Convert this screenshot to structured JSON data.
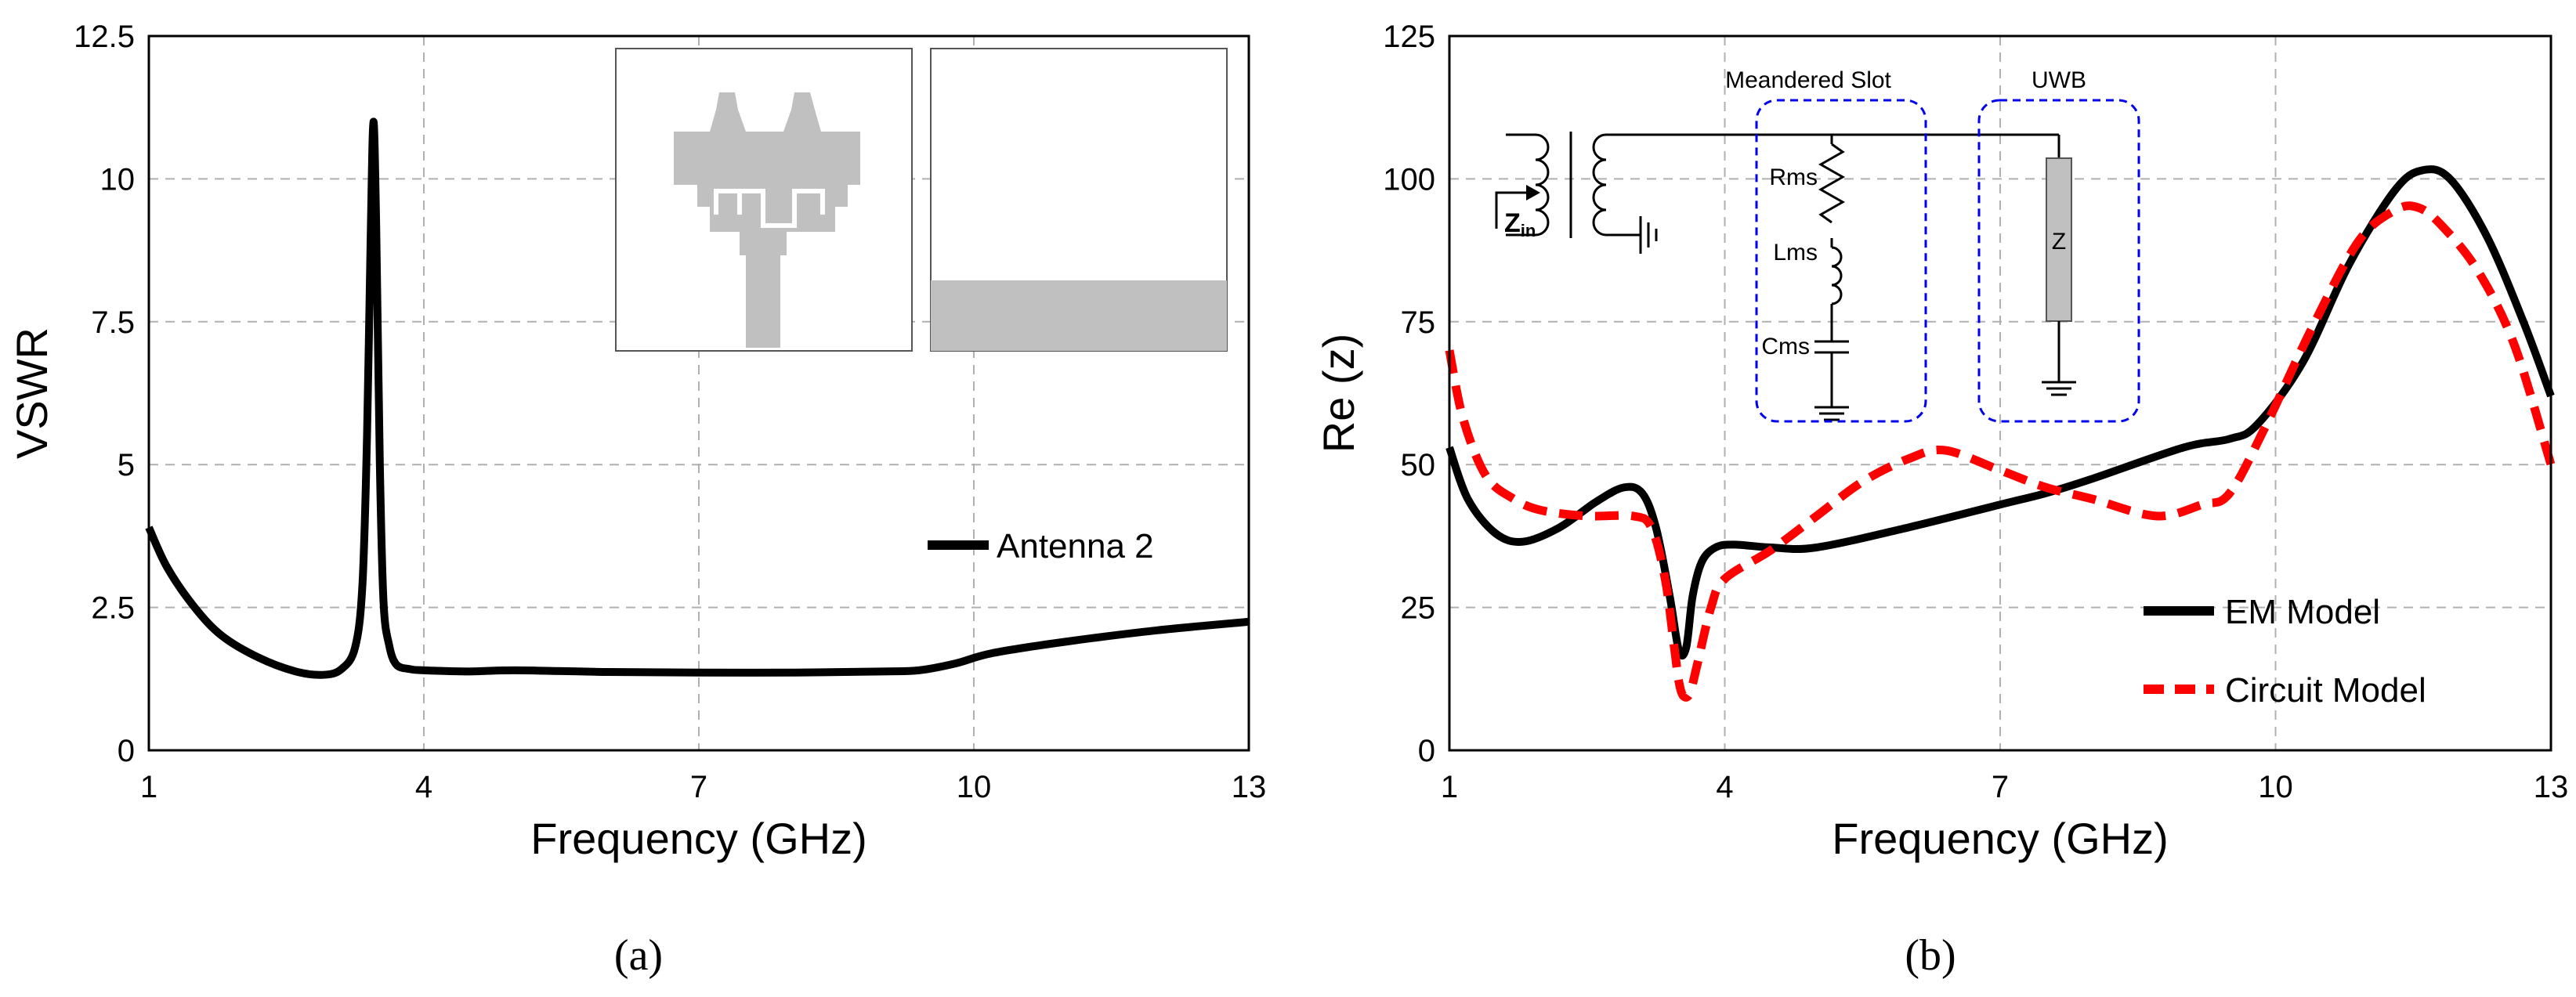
{
  "chart_data": [
    {
      "type": "line",
      "panel_label": "(a)",
      "xlabel": "Frequency (GHz)",
      "ylabel": "VSWR",
      "xlim": [
        1,
        13
      ],
      "ylim": [
        0,
        12.5
      ],
      "xticks": [
        "1",
        "4",
        "7",
        "10",
        "13"
      ],
      "yticks": [
        "0",
        "2.5",
        "5",
        "7.5",
        "10",
        "12.5"
      ],
      "grid": true,
      "legend_position": "right",
      "series": [
        {
          "name": "Antenna 2",
          "color": "#000000",
          "style": "solid",
          "x": [
            1.0,
            1.2,
            1.5,
            1.8,
            2.2,
            2.6,
            2.9,
            3.1,
            3.25,
            3.33,
            3.38,
            3.42,
            3.45,
            3.48,
            3.52,
            3.56,
            3.62,
            3.7,
            3.85,
            4.0,
            4.5,
            5.0,
            6.0,
            7.0,
            8.0,
            9.0,
            9.4,
            9.8,
            10.2,
            11.0,
            12.0,
            13.0
          ],
          "y": [
            3.9,
            3.2,
            2.5,
            2.0,
            1.62,
            1.38,
            1.32,
            1.42,
            1.8,
            2.9,
            5.5,
            9.0,
            11.0,
            9.2,
            5.0,
            2.6,
            1.85,
            1.5,
            1.42,
            1.4,
            1.38,
            1.4,
            1.37,
            1.36,
            1.36,
            1.38,
            1.4,
            1.52,
            1.7,
            1.9,
            2.1,
            2.25
          ]
        }
      ]
    },
    {
      "type": "line",
      "panel_label": "(b)",
      "xlabel": "Frequency (GHz)",
      "ylabel": "Re (z)",
      "xlim": [
        1,
        13
      ],
      "ylim": [
        0,
        125
      ],
      "xticks": [
        "1",
        "4",
        "7",
        "10",
        "13"
      ],
      "yticks": [
        "0",
        "25",
        "50",
        "75",
        "100",
        "125"
      ],
      "grid": true,
      "legend_position": "bottom-right",
      "series": [
        {
          "name": "EM Model",
          "color": "#000000",
          "style": "solid",
          "x": [
            1.0,
            1.2,
            1.5,
            1.8,
            2.2,
            2.6,
            2.9,
            3.1,
            3.25,
            3.4,
            3.5,
            3.58,
            3.65,
            3.75,
            3.9,
            4.1,
            4.5,
            5.0,
            6.0,
            7.0,
            7.5,
            8.0,
            9.0,
            9.5,
            9.8,
            10.3,
            10.8,
            11.3,
            11.6,
            11.9,
            12.3,
            12.7,
            13.0
          ],
          "y": [
            53,
            44,
            38,
            36.5,
            39,
            43.5,
            46,
            45,
            39,
            27,
            17.5,
            18,
            27,
            33,
            35.5,
            36,
            35.5,
            35.5,
            39,
            43,
            45,
            47.5,
            53,
            54.5,
            57,
            68,
            85,
            98,
            101.5,
            100,
            90,
            75,
            62
          ]
        },
        {
          "name": "Circuit Model",
          "color": "#ff0000",
          "style": "dashed",
          "x": [
            1.0,
            1.15,
            1.4,
            1.7,
            2.0,
            2.5,
            3.0,
            3.2,
            3.35,
            3.45,
            3.5,
            3.55,
            3.62,
            3.7,
            3.85,
            4.0,
            4.5,
            5.0,
            5.5,
            6.0,
            6.4,
            7.0,
            7.5,
            8.0,
            8.7,
            9.2,
            9.5,
            9.9,
            10.4,
            10.9,
            11.3,
            11.55,
            11.8,
            12.2,
            12.6,
            13.0
          ],
          "y": [
            70,
            58,
            48,
            44,
            42,
            41,
            41,
            39,
            30,
            18,
            12,
            9.5,
            10,
            15,
            25,
            30,
            35,
            41,
            47,
            51,
            52.5,
            49,
            46,
            44,
            41,
            43,
            45,
            57,
            74,
            89,
            94.5,
            95,
            92,
            84,
            71,
            50
          ]
        }
      ]
    }
  ],
  "inset": {
    "circuit": {
      "zin_label": "Z",
      "zin_subscript": "in",
      "slot_group_label": "Meandered Slot",
      "uwb_group_label": "UWB",
      "r_label": "Rms",
      "l_label": "Lms",
      "c_label": "Cms",
      "z_label": "Z",
      "group_border_color": "#0000ee"
    },
    "antenna_color": "#c0c0c0"
  }
}
